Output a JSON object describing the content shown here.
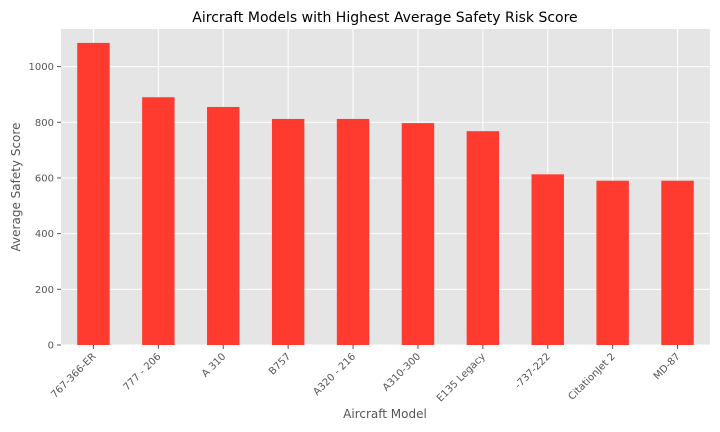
{
  "chart_data": {
    "type": "bar",
    "title": "Aircraft Models with Highest Average Safety Risk Score",
    "xlabel": "Aircraft Model",
    "ylabel": "Average Safety Score",
    "categories": [
      "767-366-ER",
      "777 - 206",
      "A 310",
      "B757",
      "A320 - 216",
      "A310-300",
      "E135 Legacy",
      "-737-222",
      "CitationJet 2",
      "MD-87"
    ],
    "values": [
      1085,
      890,
      855,
      812,
      812,
      797,
      768,
      613,
      590,
      590
    ],
    "yticks": [
      0,
      200,
      400,
      600,
      800,
      1000
    ],
    "ylim": [
      0,
      1135
    ],
    "grid": true,
    "legend": "none",
    "colors": {
      "bar": "#ff3b30",
      "plot_background": "#e5e5e5",
      "grid": "#ffffff"
    }
  }
}
